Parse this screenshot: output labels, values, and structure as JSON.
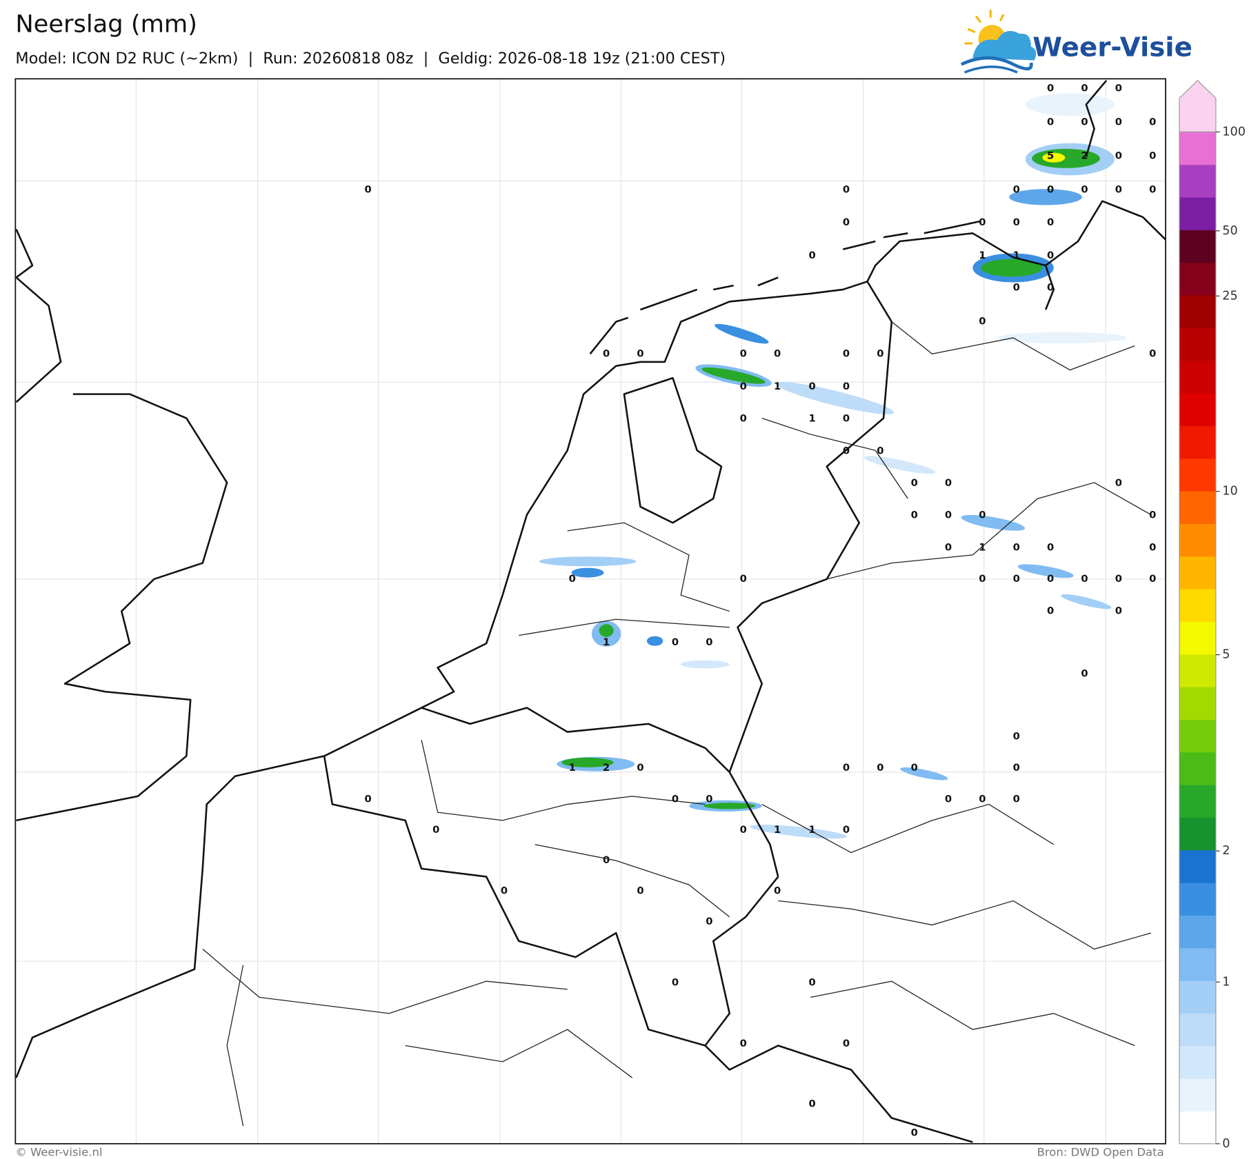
{
  "header": {
    "title": "Neerslag (mm)",
    "subtitle": "Model: ICON D2 RUC (~2km)  |  Run: 20260818 08z  |  Geldig: 2026-08-18 19z (21:00 CEST)"
  },
  "logo": {
    "text": "Weer-Visie"
  },
  "map": {
    "point_values": [
      0,
      0,
      0,
      0,
      0,
      0,
      0,
      5,
      2,
      0,
      0,
      0,
      0,
      0,
      0,
      0,
      0,
      0,
      0,
      0,
      0,
      0,
      0,
      1,
      1,
      0,
      0,
      0,
      0,
      0,
      0,
      0,
      0,
      0,
      0,
      0,
      0,
      1,
      0,
      0,
      0,
      1,
      0,
      0,
      0,
      0,
      0,
      0,
      0,
      0,
      0,
      0,
      0,
      1,
      0,
      0,
      0,
      0,
      0,
      0,
      0,
      0,
      0,
      0,
      0,
      0,
      0,
      1,
      0,
      0,
      0,
      0,
      1,
      2,
      0,
      0,
      0,
      0,
      0,
      0,
      0,
      0,
      0,
      0,
      0,
      0,
      0,
      1,
      1,
      0,
      0,
      0,
      0,
      0,
      0,
      0,
      0,
      0,
      0,
      0,
      0
    ]
  },
  "colorbar": {
    "ticks": [
      0,
      1,
      2,
      5,
      10,
      25,
      50,
      100
    ],
    "colors": [
      "#ffffff",
      "#e9f3fc",
      "#d3e8fa",
      "#bddcf8",
      "#a3cff6",
      "#80bbf1",
      "#5ea6ea",
      "#3a8fe0",
      "#1a73d1",
      "#17922f",
      "#28a82a",
      "#4cbb17",
      "#76cc0c",
      "#a4d900",
      "#cfe900",
      "#f5f900",
      "#ffd900",
      "#ffb600",
      "#ff8c00",
      "#ff6600",
      "#ff3a00",
      "#f01a00",
      "#e00000",
      "#cc0000",
      "#b80000",
      "#a00000",
      "#85001a",
      "#5e0020",
      "#7a1fa2",
      "#a83ec0",
      "#e870d4",
      "#fbd3f0"
    ]
  },
  "footer": {
    "copyright": "© Weer-visie.nl",
    "source": "Bron: DWD Open Data"
  }
}
